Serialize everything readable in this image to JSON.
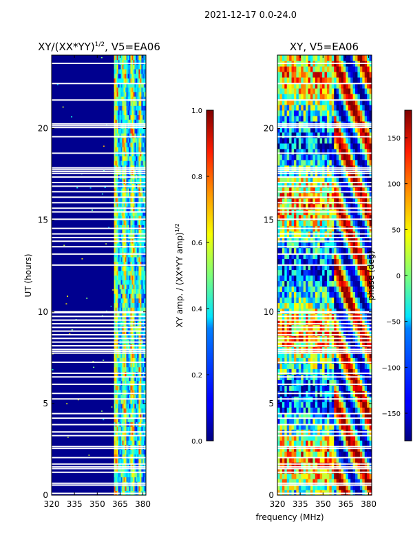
{
  "figure_title": "2021-12-17 0.0-24.0",
  "xlabel_shared": "frequency (MHz)",
  "chart_data": [
    {
      "type": "heatmap",
      "title": "XY/(XX*YY)^{1/2}, V5=EA06",
      "title_main": "XY/(XX*YY)",
      "title_sup": "1/2",
      "title_suffix": ", V5=EA06",
      "xlabel": "frequency (MHz)",
      "ylabel": "UT (hours)",
      "xlim": [
        320,
        382
      ],
      "ylim": [
        0,
        24
      ],
      "xticks": [
        320,
        335,
        350,
        365,
        380
      ],
      "yticks": [
        0,
        5,
        10,
        15,
        20
      ],
      "colorbar": {
        "label": "XY amp. / (XX*YY amp)^{1/2}",
        "label_main": "XY amp. / (XX*YY amp)",
        "label_sup": "1/2",
        "range": [
          0.0,
          1.0
        ],
        "ticks": [
          "0.0",
          "0.2",
          "0.4",
          "0.6",
          "0.8",
          "1.0"
        ],
        "colormap": "jet"
      },
      "description": "low normalized amplitude (~0.05) below 361 MHz, elevated (~0.3-0.7) with channel stripes above 361 MHz"
    },
    {
      "type": "heatmap",
      "title": "XY, V5=EA06",
      "xlabel": "frequency (MHz)",
      "ylabel": "",
      "xlim": [
        320,
        382
      ],
      "ylim": [
        0,
        24
      ],
      "xticks": [
        320,
        335,
        350,
        365,
        380
      ],
      "yticks": [
        0,
        5,
        10,
        15,
        20
      ],
      "colorbar": {
        "label": "phase (deg)",
        "range": [
          -180,
          180
        ],
        "ticks": [
          "-150",
          "-100",
          "-50",
          "0",
          "50",
          "100",
          "150"
        ],
        "colormap": "jet"
      },
      "description": "cross-hand phase varying across the band, noisy pattern"
    }
  ],
  "flagged_hours": [
    0.1,
    0.55,
    0.65,
    1.25,
    1.45,
    1.55,
    1.7,
    2.05,
    2.55,
    2.65,
    3.25,
    3.45,
    3.85,
    4.2,
    4.45,
    5.25,
    5.55,
    6.05,
    6.45,
    6.65,
    7.25,
    7.75,
    7.85,
    7.95,
    8.15,
    8.35,
    8.55,
    8.75,
    8.95,
    9.15,
    9.35,
    9.55,
    9.75,
    9.95,
    10.0,
    12.55,
    13.15,
    13.55,
    13.85,
    14.05,
    14.25,
    14.55,
    15.05,
    15.45,
    15.65,
    15.95,
    16.25,
    16.55,
    16.85,
    17.05,
    17.35,
    17.55,
    17.65,
    17.75,
    17.85,
    18.65,
    19.55,
    20.05,
    20.15,
    20.25,
    21.55,
    22.45,
    23.55
  ],
  "colors": {
    "background": "#ffffff",
    "flag": "#ffffff",
    "low_amp": "#00008f"
  }
}
